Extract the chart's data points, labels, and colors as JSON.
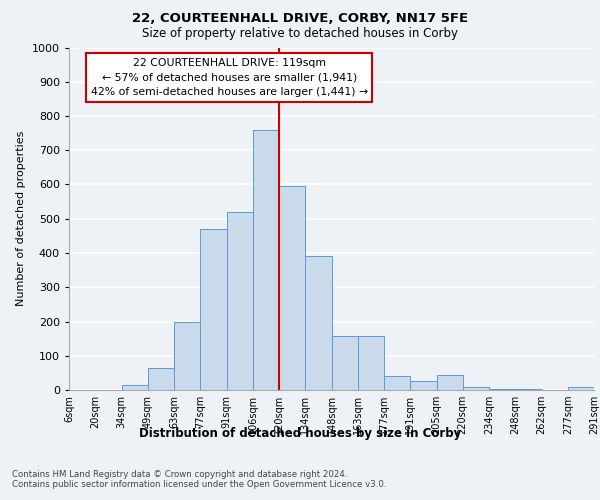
{
  "title1": "22, COURTEENHALL DRIVE, CORBY, NN17 5FE",
  "title2": "Size of property relative to detached houses in Corby",
  "xlabel": "Distribution of detached houses by size in Corby",
  "ylabel": "Number of detached properties",
  "footnote": "Contains HM Land Registry data © Crown copyright and database right 2024.\nContains public sector information licensed under the Open Government Licence v3.0.",
  "bin_labels": [
    "6sqm",
    "20sqm",
    "34sqm",
    "49sqm",
    "63sqm",
    "77sqm",
    "91sqm",
    "106sqm",
    "120sqm",
    "134sqm",
    "148sqm",
    "163sqm",
    "177sqm",
    "191sqm",
    "205sqm",
    "220sqm",
    "234sqm",
    "248sqm",
    "262sqm",
    "277sqm",
    "291sqm"
  ],
  "bar_values": [
    0,
    0,
    15,
    65,
    200,
    470,
    520,
    760,
    595,
    390,
    158,
    158,
    40,
    25,
    43,
    10,
    3,
    3,
    0,
    8
  ],
  "bar_color": "#c9daea",
  "bar_edge_color": "#5b9bd5",
  "vline_color": "#cc0000",
  "annotation_text": "22 COURTEENHALL DRIVE: 119sqm\n← 57% of detached houses are smaller (1,941)\n42% of semi-detached houses are larger (1,441) →",
  "annotation_box_color": "#ffffff",
  "annotation_box_edge_color": "#cc0000",
  "ylim": [
    0,
    1000
  ],
  "background_color": "#eef2f7",
  "grid_color": "#ffffff"
}
